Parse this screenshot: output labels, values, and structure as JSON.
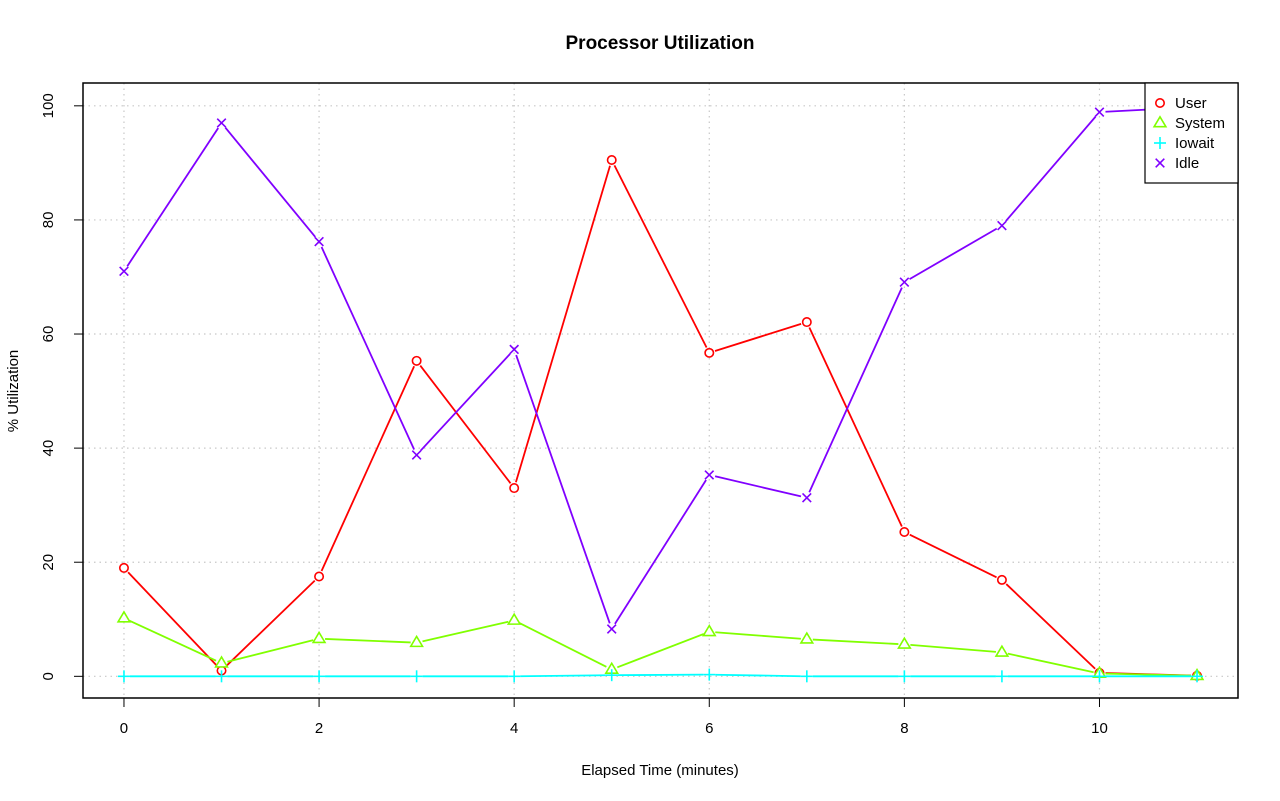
{
  "chart_data": {
    "type": "line",
    "title": "Processor Utilization",
    "xlabel": "Elapsed Time (minutes)",
    "ylabel": "% Utilization",
    "xlim": [
      -0.42,
      11.42
    ],
    "ylim": [
      -3.8,
      104
    ],
    "x_ticks": [
      0,
      2,
      4,
      6,
      8,
      10
    ],
    "y_ticks": [
      0,
      20,
      40,
      60,
      80,
      100
    ],
    "grid": true,
    "legend_position": "top-right",
    "x": [
      0,
      1,
      2,
      3,
      4,
      5,
      6,
      7,
      8,
      9,
      10,
      11
    ],
    "series": [
      {
        "name": "User",
        "color": "#ff0000",
        "marker": "circle",
        "values": [
          19.0,
          1.0,
          17.5,
          55.3,
          33.0,
          90.5,
          56.7,
          62.1,
          25.3,
          16.9,
          0.6,
          0.1
        ]
      },
      {
        "name": "System",
        "color": "#80ff00",
        "marker": "triangle",
        "values": [
          10.2,
          2.3,
          6.6,
          5.9,
          9.8,
          1.2,
          7.8,
          6.5,
          5.6,
          4.2,
          0.5,
          0.1
        ]
      },
      {
        "name": "Iowait",
        "color": "#00ffff",
        "marker": "plus",
        "values": [
          0,
          0,
          0,
          0,
          0,
          0.2,
          0.3,
          0,
          0,
          0,
          0,
          0
        ]
      },
      {
        "name": "Idle",
        "color": "#8000ff",
        "marker": "x",
        "values": [
          71.0,
          97.0,
          76.2,
          38.8,
          57.3,
          8.3,
          35.3,
          31.3,
          69.1,
          79.0,
          98.9,
          99.8
        ]
      }
    ]
  }
}
